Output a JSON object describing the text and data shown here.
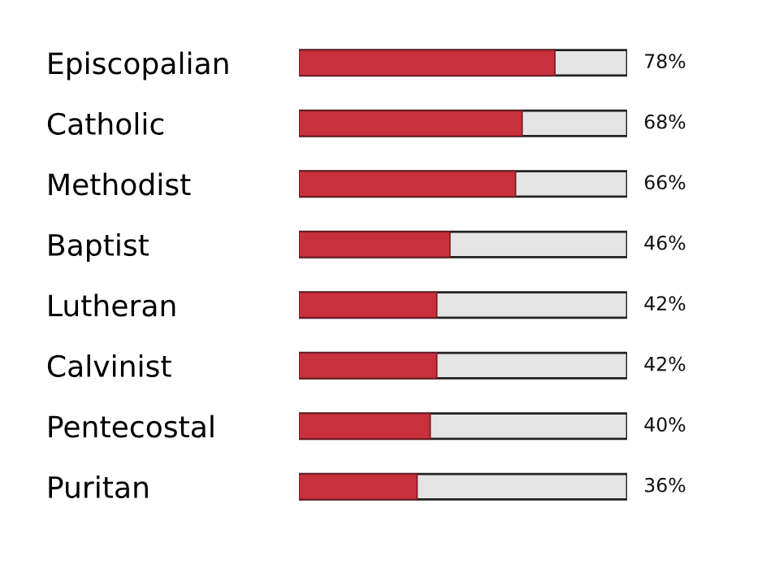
{
  "chart_data": {
    "type": "bar",
    "orientation": "horizontal",
    "categories": [
      "Episcopalian",
      "Catholic",
      "Methodist",
      "Baptist",
      "Lutheran",
      "Calvinist",
      "Pentecostal",
      "Puritan"
    ],
    "values": [
      78,
      68,
      66,
      46,
      42,
      42,
      40,
      36
    ],
    "value_labels": [
      "78%",
      "68%",
      "66%",
      "46%",
      "42%",
      "42%",
      "40%",
      "36%"
    ],
    "color": "#c8303c",
    "xlim": [
      0,
      100
    ],
    "tick_labels": "y",
    "grid": false,
    "legend": false
  }
}
